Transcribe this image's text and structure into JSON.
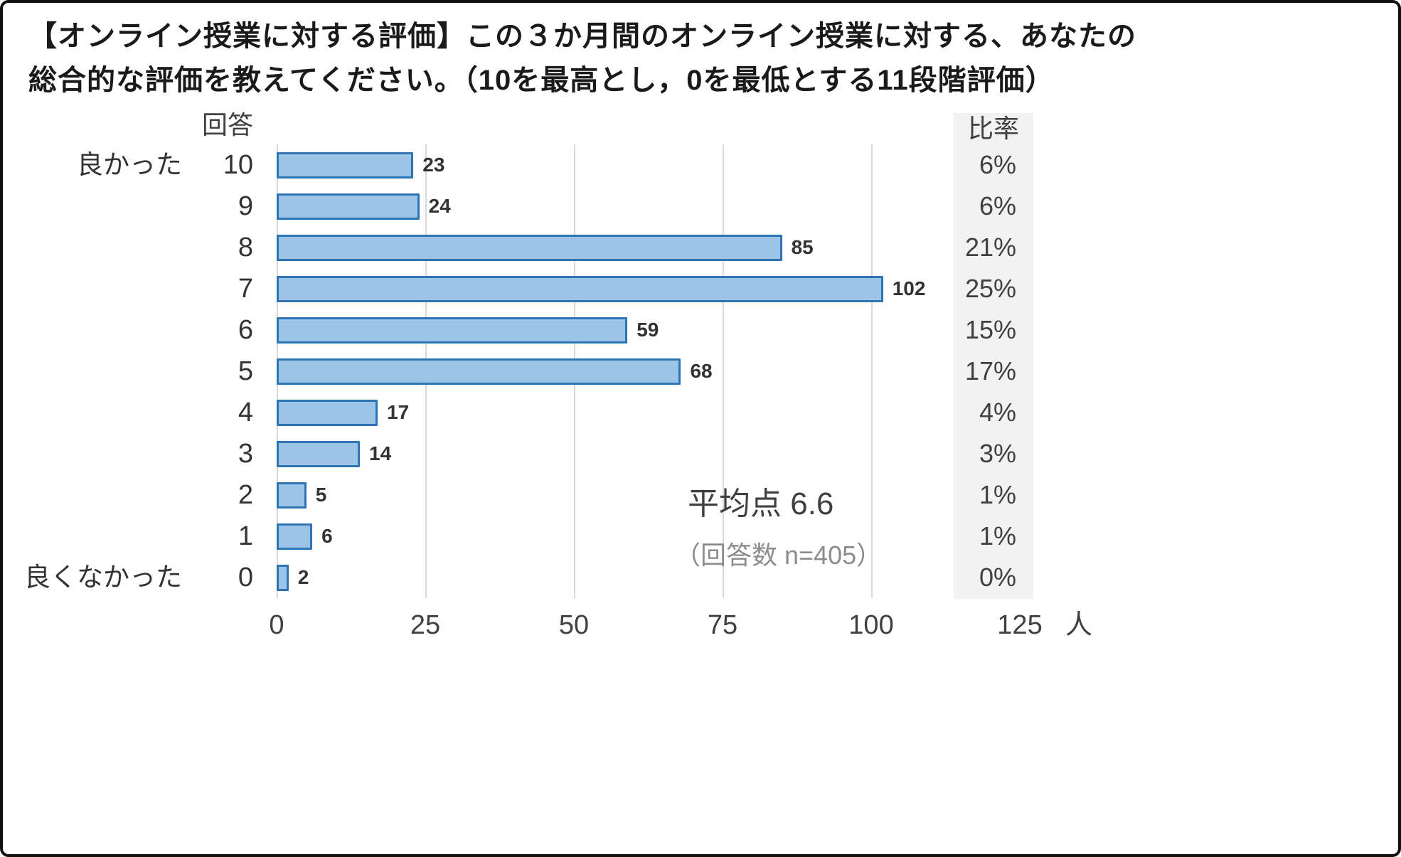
{
  "title": {
    "line1": "【オンライン授業に対する評価】この３か月間のオンライン授業に対する、あなたの",
    "line2": "総合的な評価を教えてください。（10を最高とし，0を最低とする11段階評価）"
  },
  "chart_data": {
    "type": "bar",
    "orientation": "horizontal",
    "y_header": "回答",
    "percent_header": "比率",
    "top_label": "良かった",
    "bottom_label": "良くなかった",
    "categories": [
      "10",
      "9",
      "8",
      "7",
      "6",
      "5",
      "4",
      "3",
      "2",
      "1",
      "0"
    ],
    "values": [
      23,
      24,
      85,
      102,
      59,
      68,
      17,
      14,
      5,
      6,
      2
    ],
    "percent_labels": [
      "6%",
      "6%",
      "21%",
      "25%",
      "15%",
      "17%",
      "4%",
      "3%",
      "1%",
      "1%",
      "0%"
    ],
    "xlim": [
      0,
      125
    ],
    "x_ticks": [
      0,
      25,
      50,
      75,
      100,
      125
    ],
    "x_tick_labels": [
      "0",
      "25",
      "50",
      "75",
      "100",
      "125"
    ],
    "x_unit": "人",
    "grid": true,
    "annotation": {
      "average": "平均点 6.6",
      "n": "（回答数 n=405）"
    },
    "colors": {
      "bar_fill": "#9DC3E6",
      "bar_border": "#2E75B6",
      "gridline": "#d9d9d9",
      "percent_band_bg": "#f2f2f2"
    }
  }
}
